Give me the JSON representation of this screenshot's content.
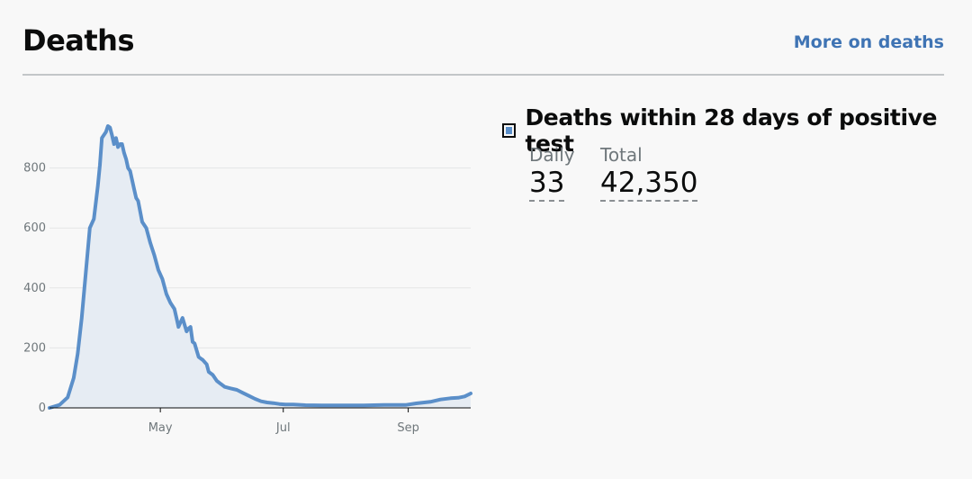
{
  "header": {
    "title": "Deaths",
    "more_link": "More on deaths"
  },
  "metric": {
    "name": "Deaths within 28 days of positive test",
    "daily_label": "Daily",
    "daily_value": "33",
    "total_label": "Total",
    "total_value": "42,350",
    "legend_color": "#5b8fc9"
  },
  "chart_data": {
    "type": "area",
    "title": "",
    "xlabel": "",
    "ylabel": "",
    "ylim": [
      0,
      1000
    ],
    "yticks": [
      0,
      200,
      400,
      600,
      800
    ],
    "xlim": [
      "2020-03-07",
      "2020-10-02"
    ],
    "xticks": [
      {
        "label": "May",
        "date": "2020-05-01"
      },
      {
        "label": "Jul",
        "date": "2020-07-01"
      },
      {
        "label": "Sep",
        "date": "2020-09-01"
      }
    ],
    "grid": true,
    "series": [
      {
        "name": "Deaths within 28 days of positive test",
        "color": "#5b8fc9",
        "x": [
          "2020-03-07",
          "2020-03-12",
          "2020-03-16",
          "2020-03-19",
          "2020-03-21",
          "2020-03-23",
          "2020-03-25",
          "2020-03-27",
          "2020-03-29",
          "2020-03-31",
          "2020-04-01",
          "2020-04-02",
          "2020-04-04",
          "2020-04-05",
          "2020-04-06",
          "2020-04-07",
          "2020-04-08",
          "2020-04-09",
          "2020-04-10",
          "2020-04-11",
          "2020-04-12",
          "2020-04-13",
          "2020-04-14",
          "2020-04-15",
          "2020-04-16",
          "2020-04-17",
          "2020-04-18",
          "2020-04-19",
          "2020-04-20",
          "2020-04-22",
          "2020-04-24",
          "2020-04-26",
          "2020-04-28",
          "2020-04-30",
          "2020-05-02",
          "2020-05-04",
          "2020-05-06",
          "2020-05-08",
          "2020-05-09",
          "2020-05-10",
          "2020-05-12",
          "2020-05-14",
          "2020-05-15",
          "2020-05-16",
          "2020-05-17",
          "2020-05-18",
          "2020-05-20",
          "2020-05-21",
          "2020-05-22",
          "2020-05-24",
          "2020-05-25",
          "2020-05-27",
          "2020-05-29",
          "2020-05-31",
          "2020-06-02",
          "2020-06-05",
          "2020-06-08",
          "2020-06-11",
          "2020-06-14",
          "2020-06-17",
          "2020-06-20",
          "2020-06-23",
          "2020-06-26",
          "2020-06-29",
          "2020-07-02",
          "2020-07-06",
          "2020-07-12",
          "2020-07-20",
          "2020-08-01",
          "2020-08-10",
          "2020-08-20",
          "2020-08-31",
          "2020-09-05",
          "2020-09-12",
          "2020-09-17",
          "2020-09-22",
          "2020-09-26",
          "2020-09-29",
          "2020-10-02"
        ],
        "values": [
          0,
          10,
          35,
          100,
          180,
          300,
          450,
          600,
          630,
          740,
          810,
          900,
          920,
          940,
          935,
          910,
          880,
          900,
          870,
          880,
          880,
          850,
          830,
          800,
          790,
          760,
          730,
          700,
          690,
          620,
          600,
          550,
          510,
          460,
          430,
          380,
          350,
          330,
          300,
          270,
          300,
          255,
          265,
          270,
          220,
          215,
          170,
          165,
          160,
          145,
          120,
          110,
          90,
          80,
          70,
          65,
          60,
          50,
          40,
          30,
          22,
          18,
          16,
          13,
          11,
          11,
          9,
          8,
          8,
          8,
          10,
          10,
          15,
          20,
          28,
          32,
          34,
          38,
          48
        ]
      }
    ]
  }
}
